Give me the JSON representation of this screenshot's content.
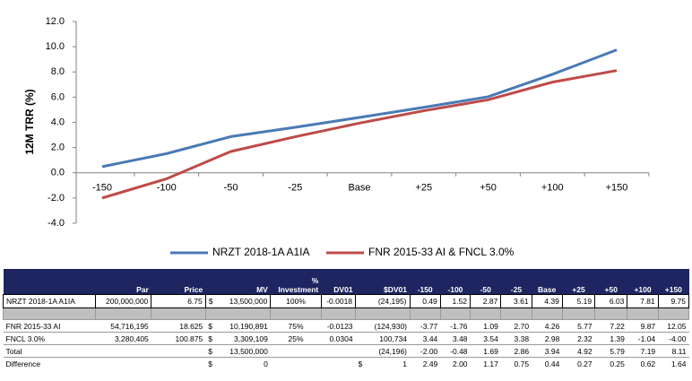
{
  "chart_data": {
    "type": "line",
    "ylabel": "12M TRR (%)",
    "categories": [
      "-150",
      "-100",
      "-50",
      "-25",
      "Base",
      "+25",
      "+50",
      "+100",
      "+150"
    ],
    "series": [
      {
        "name": "NRZT 2018-1A A1IA",
        "color": "#4a7ab5",
        "values": [
          0.49,
          1.52,
          2.87,
          3.61,
          4.39,
          5.19,
          6.03,
          7.81,
          9.75
        ]
      },
      {
        "name": "FNR 2015-33 AI & FNCL 3.0%",
        "color": "#be4b48",
        "values": [
          -2.0,
          -0.48,
          1.69,
          2.86,
          3.94,
          4.92,
          5.79,
          7.19,
          8.11
        ]
      }
    ],
    "ylim": [
      -4,
      12
    ],
    "yticks": [
      {
        "value": -4,
        "label": "-4.0"
      },
      {
        "value": -2,
        "label": "-2.0"
      },
      {
        "value": 0,
        "label": "0.0"
      },
      {
        "value": 2,
        "label": "2.0"
      },
      {
        "value": 4,
        "label": "4.0"
      },
      {
        "value": 6,
        "label": "6.0"
      },
      {
        "value": 8,
        "label": "8.0"
      },
      {
        "value": 10,
        "label": "10.0"
      },
      {
        "value": 12,
        "label": "12.0"
      }
    ],
    "legend": "bottom"
  },
  "table": {
    "headers": [
      "Par",
      "Price",
      "MV",
      "% Investment",
      "DV01",
      "$DV01",
      "-150",
      "-100",
      "-50",
      "-25",
      "Base",
      "+25",
      "+50",
      "+100",
      "+150"
    ],
    "rows": [
      {
        "label": "NRZT 2018-1A A1IA",
        "cells": [
          "200,000,000",
          "6.75",
          {
            "sym": "$",
            "num": "13,500,000"
          },
          "100%",
          "-0.0018",
          "(24,195)",
          "0.49",
          "1.52",
          "2.87",
          "3.61",
          "4.39",
          "5.19",
          "6.03",
          "7.81",
          "9.75"
        ]
      },
      {
        "label": "FNR 2015-33 AI",
        "cells": [
          "54,716,195",
          "18.625",
          {
            "sym": "$",
            "num": "10,190,891"
          },
          "75%",
          "-0.0123",
          "(124,930)",
          "-3.77",
          "-1.76",
          "1.09",
          "2.70",
          "4.26",
          "5.77",
          "7.22",
          "9.87",
          "12.05"
        ]
      },
      {
        "label": "FNCL 3.0%",
        "cells": [
          "3,280,405",
          "100.875",
          {
            "sym": "$",
            "num": "3,309,109"
          },
          "25%",
          "0.0304",
          "100,734",
          "3.44",
          "3.48",
          "3.54",
          "3.38",
          "2.98",
          "2.32",
          "1.39",
          "-1.04",
          "-4.00"
        ]
      },
      {
        "label": "Total",
        "cells": [
          null,
          null,
          {
            "sym": "$",
            "num": "13,500,000"
          },
          null,
          null,
          "(24,196)",
          "-2.00",
          "-0.48",
          "1.69",
          "2.86",
          "3.94",
          "4.92",
          "5.79",
          "7.19",
          "8.11"
        ]
      },
      {
        "label": "Difference",
        "cells": [
          null,
          null,
          {
            "sym": "$",
            "num": "0"
          },
          null,
          null,
          {
            "sym": "$",
            "num": "1"
          },
          "2.49",
          "2.00",
          "1.17",
          "0.75",
          "0.44",
          "0.27",
          "0.25",
          "0.62",
          "1.64"
        ]
      }
    ]
  }
}
